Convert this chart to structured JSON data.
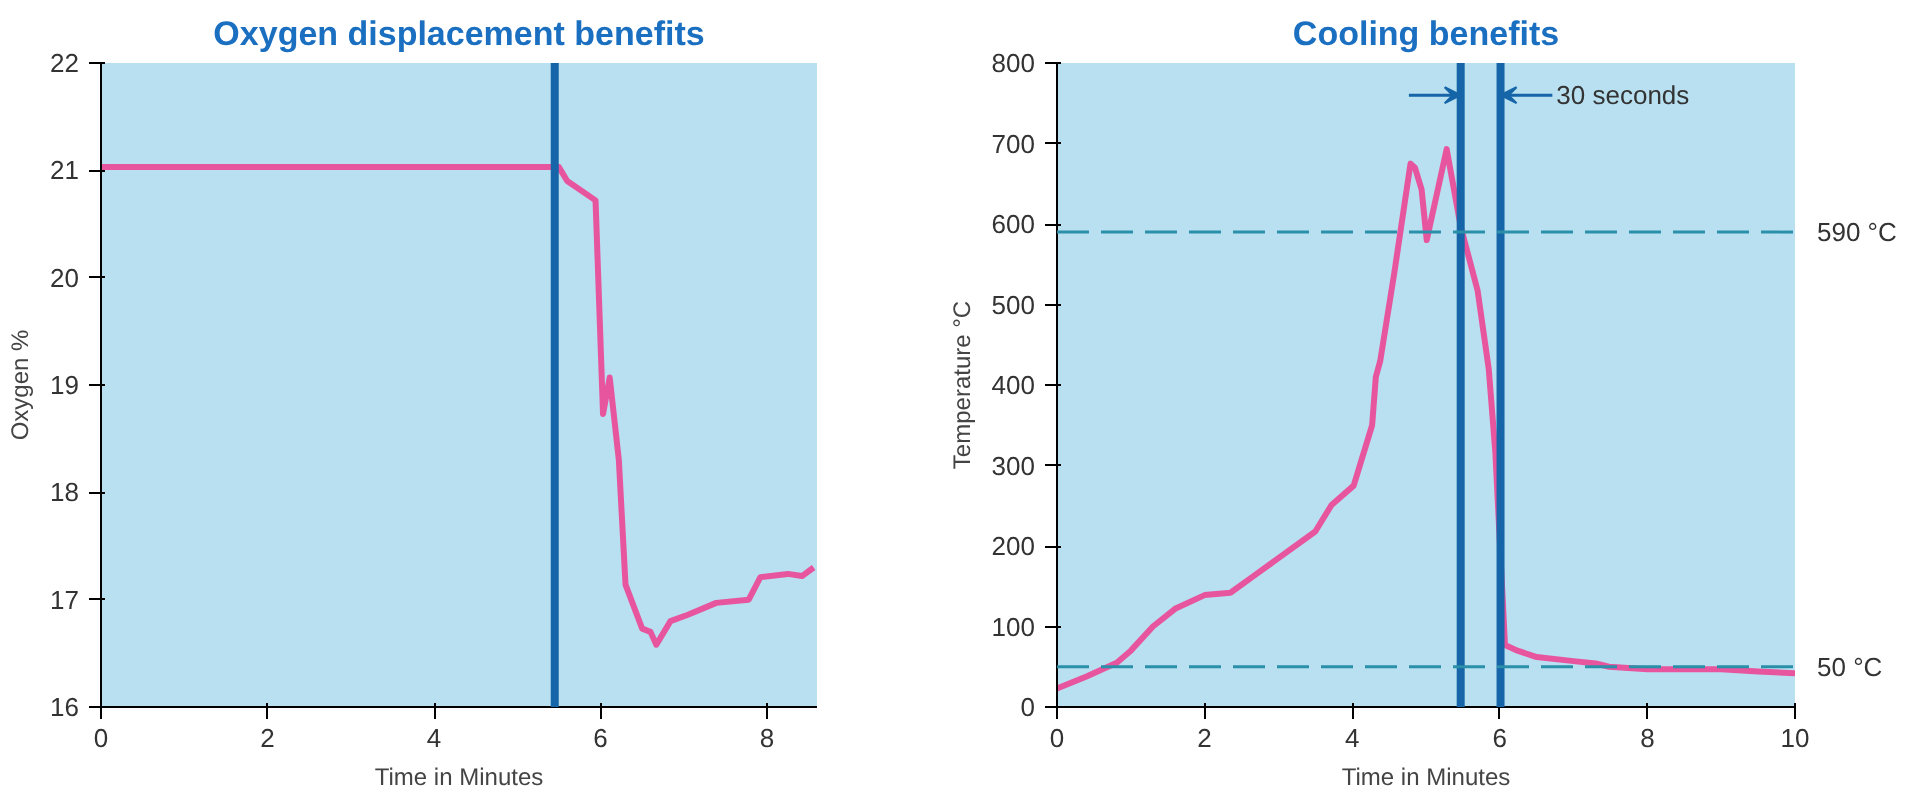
{
  "chart_data": [
    {
      "type": "line",
      "title": "Oxygen displacement benefits",
      "xlabel": "Time in Minutes",
      "ylabel": "Oxygen %",
      "xlim": [
        0,
        8.6
      ],
      "ylim": [
        16,
        22
      ],
      "xticks": [
        0,
        2,
        4,
        6,
        8
      ],
      "yticks": [
        16,
        17,
        18,
        19,
        20,
        21,
        22
      ],
      "grid": false,
      "series": [
        {
          "color": "#e8559f",
          "x": [
            0,
            5.5,
            5.6,
            5.94,
            6.03,
            6.11,
            6.22,
            6.3,
            6.5,
            6.6,
            6.67,
            6.84,
            7.05,
            7.39,
            7.78,
            7.92,
            8.25,
            8.42,
            8.56
          ],
          "values": [
            21.03,
            21.03,
            20.9,
            20.72,
            18.73,
            19.07,
            18.3,
            17.14,
            16.73,
            16.7,
            16.58,
            16.8,
            16.86,
            16.97,
            17.0,
            17.21,
            17.24,
            17.22,
            17.3
          ]
        }
      ],
      "ref_lines": [
        {
          "axis": "x",
          "value": 5.45,
          "color": "#1565a8",
          "line_style": "solid"
        }
      ]
    },
    {
      "type": "line",
      "title": "Cooling benefits",
      "xlabel": "Time in Minutes",
      "ylabel": "Temperature °C",
      "xlim": [
        0,
        10
      ],
      "ylim": [
        0,
        800
      ],
      "xticks": [
        0,
        2,
        4,
        6,
        8,
        10
      ],
      "yticks": [
        0,
        100,
        200,
        300,
        400,
        500,
        600,
        700,
        800
      ],
      "grid": false,
      "series": [
        {
          "color": "#e8559f",
          "x": [
            0,
            0.4,
            0.81,
            1.0,
            1.3,
            1.6,
            2.0,
            2.35,
            2.7,
            3.0,
            3.5,
            3.72,
            4.02,
            4.27,
            4.32,
            4.38,
            4.57,
            4.79,
            4.85,
            4.94,
            5.01,
            5.28,
            5.47,
            5.7,
            5.85,
            5.94,
            6.07,
            6.24,
            6.5,
            7.0,
            7.3,
            7.48,
            8.0,
            9.0,
            9.5,
            10.0
          ],
          "values": [
            23,
            38,
            55,
            70,
            100,
            122,
            139,
            142,
            165,
            185,
            218,
            251,
            275,
            350,
            410,
            430,
            539,
            675,
            670,
            643,
            580,
            693,
            597,
            517,
            420,
            316,
            77,
            70,
            62,
            57,
            54,
            50,
            47,
            47,
            44,
            42
          ]
        }
      ],
      "ref_lines": [
        {
          "axis": "x",
          "value": 5.47,
          "color": "#1565a8",
          "line_style": "solid"
        },
        {
          "axis": "x",
          "value": 6.01,
          "color": "#1565a8",
          "line_style": "solid"
        },
        {
          "axis": "y",
          "value": 590,
          "label": "590 °C",
          "color": "#2a8fa8",
          "line_style": "dashed"
        },
        {
          "axis": "y",
          "value": 50,
          "label": "50 °C",
          "color": "#2a8fa8",
          "line_style": "dashed"
        }
      ],
      "annotations": [
        {
          "text": "30 seconds",
          "x": 6.01,
          "y": 760
        }
      ]
    }
  ]
}
